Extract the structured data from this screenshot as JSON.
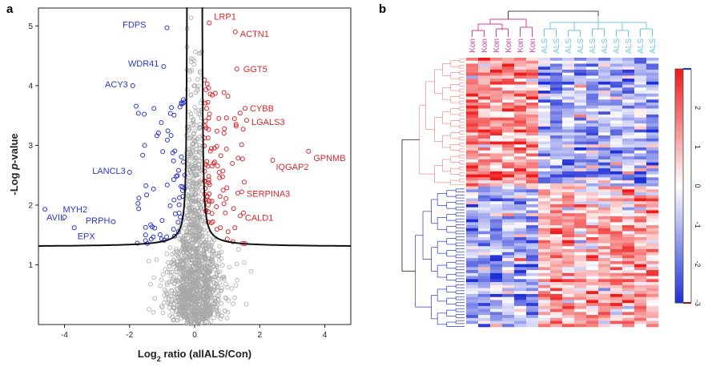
{
  "panels": {
    "a": "a",
    "b": "b"
  },
  "colors": {
    "up": "#d8262b",
    "down": "#2a35c8",
    "ns": "#a8a8a8",
    "kon": "#d6409f",
    "als": "#6fc4e6",
    "heat_low": "#1f2fd6",
    "heat_mid": "#ffffff",
    "heat_high": "#ee1b1b"
  },
  "chart_data": [
    {
      "type": "scatter",
      "title": "",
      "xlabel_prefix": "Log",
      "xlabel_sub": "2",
      "xlabel_suffix": " ratio (allALS/Con)",
      "ylabel_prefix": "-Log ",
      "ylabel_italic": "p",
      "ylabel_suffix": "-value",
      "xlim": [
        -4.8,
        4.8
      ],
      "ylim": [
        0,
        5.3
      ],
      "xticks": [
        -4,
        -2,
        0,
        2,
        4
      ],
      "yticks": [
        1,
        2,
        3,
        4,
        5
      ],
      "threshold_curve": "volcano significance boundary",
      "labeled_points": [
        {
          "label": "FDPS",
          "x": -0.85,
          "y": 4.97,
          "group": "down"
        },
        {
          "label": "WDR41",
          "x": -0.95,
          "y": 4.32,
          "group": "down"
        },
        {
          "label": "ACY3",
          "x": -1.9,
          "y": 4.0,
          "group": "down"
        },
        {
          "label": "LANCL3",
          "x": -2.0,
          "y": 2.55,
          "group": "down"
        },
        {
          "label": "MYH2",
          "x": -4.0,
          "y": 1.8,
          "group": "down"
        },
        {
          "label": "AVIL",
          "x": -4.6,
          "y": 1.93,
          "group": "down"
        },
        {
          "label": "PRPH",
          "x": -2.5,
          "y": 1.72,
          "group": "down"
        },
        {
          "label": "EPX",
          "x": -3.7,
          "y": 1.62,
          "group": "down"
        },
        {
          "label": "LRP1",
          "x": 0.45,
          "y": 5.05,
          "group": "up"
        },
        {
          "label": "ACTN1",
          "x": 1.25,
          "y": 4.9,
          "group": "up"
        },
        {
          "label": "GGT5",
          "x": 1.3,
          "y": 4.28,
          "group": "up"
        },
        {
          "label": "CYBB",
          "x": 1.55,
          "y": 3.62,
          "group": "up"
        },
        {
          "label": "LGALS3",
          "x": 1.6,
          "y": 3.42,
          "group": "up"
        },
        {
          "label": "GPNMB",
          "x": 3.5,
          "y": 2.9,
          "group": "up"
        },
        {
          "label": "IQGAP2",
          "x": 2.4,
          "y": 2.75,
          "group": "up"
        },
        {
          "label": "SERPINA3",
          "x": 1.45,
          "y": 2.22,
          "group": "up"
        },
        {
          "label": "CALD1",
          "x": 1.4,
          "y": 1.82,
          "group": "up"
        }
      ]
    },
    {
      "type": "heatmap",
      "title": "",
      "columns": [
        "Kon",
        "Kon",
        "Kon",
        "Kon",
        "Kon",
        "Kon",
        "ALS",
        "ALS",
        "ALS",
        "ALS",
        "ALS",
        "ALS",
        "ALS",
        "ALS",
        "ALS",
        "ALS"
      ],
      "groups": [
        "Kon",
        "ALS"
      ],
      "colorbar_ticks": [
        "-3",
        "-2",
        "-1",
        "0",
        "1",
        "2"
      ],
      "clusters": [
        {
          "name": "upper",
          "pattern": "high in Kon, low in ALS"
        },
        {
          "name": "lower",
          "pattern": "low in Kon, high in ALS"
        }
      ]
    }
  ]
}
